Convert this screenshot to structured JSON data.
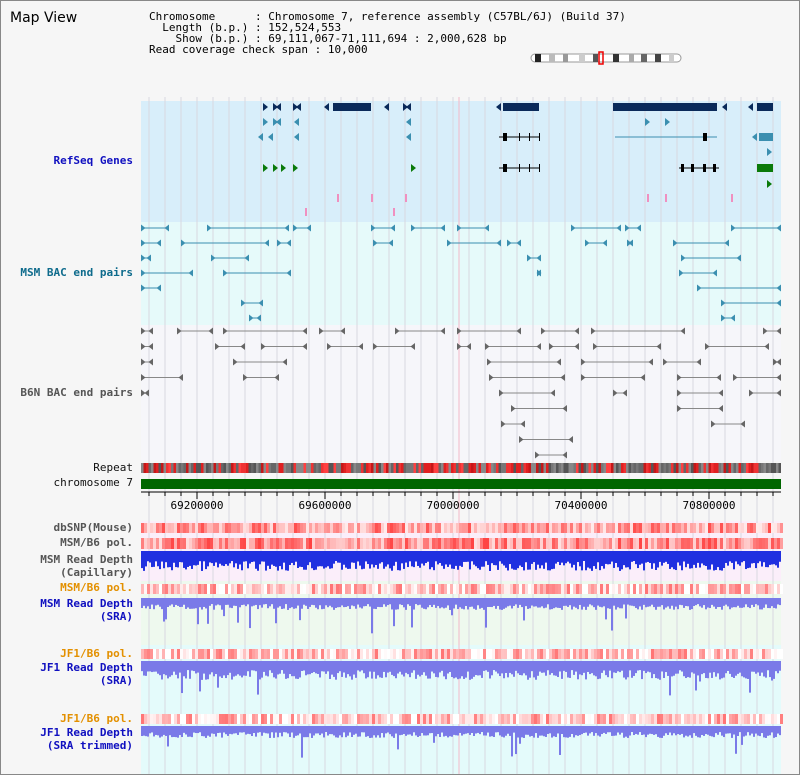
{
  "title": "Map View",
  "info": {
    "chromosome_key": "Chromosome",
    "chromosome_val": "Chromosome 7, reference assembly (C57BL/6J) (Build 37)",
    "length_key": "Length (b.p.)",
    "length_val": "152,524,553",
    "show_key": "Show (b.p.)",
    "show_val": "69,111,067-71,111,694 : 2,000,628 bp",
    "coverage_key": "Read coverage check span",
    "coverage_val": "10,000"
  },
  "tracks": {
    "refseq": "RefSeq Genes",
    "msm_bac": "MSM BAC end pairs",
    "b6n_bac": "B6N BAC end pairs",
    "repeat": "Repeat",
    "chromosome": "chromosome 7",
    "dbsnp": "dbSNP(Mouse)",
    "msm_b6_pol_1": "MSM/B6 pol.",
    "msm_read_depth_cap_1": "MSM Read Depth",
    "msm_read_depth_cap_2": "(Capillary)",
    "msm_b6_pol_2": "MSM/B6 pol.",
    "msm_read_depth_sra_1": "MSM Read Depth",
    "msm_read_depth_sra_2": "(SRA)",
    "jf1_b6_pol_1": "JF1/B6 pol.",
    "jf1_read_depth_sra_1": "JF1 Read Depth",
    "jf1_read_depth_sra_2": "(SRA)",
    "jf1_b6_pol_2": "JF1/B6 pol.",
    "jf1_read_depth_trim_1": "JF1 Read Depth",
    "jf1_read_depth_trim_2": "(SRA trimmed)"
  },
  "axis": {
    "ticks": [
      "69200000",
      "69600000",
      "70000000",
      "70400000",
      "70800000"
    ]
  },
  "colors": {
    "refseq_bg": "#d8eefa",
    "bac_bg": "#e6fafa",
    "gene_dark": "#0a2a5a",
    "gene_teal": "#3b8fb0",
    "gene_green": "#0a7a0a",
    "chromosome_bar": "#006600",
    "depth_blue": "#2030e0",
    "depth_light": "#7a7ae8"
  }
}
